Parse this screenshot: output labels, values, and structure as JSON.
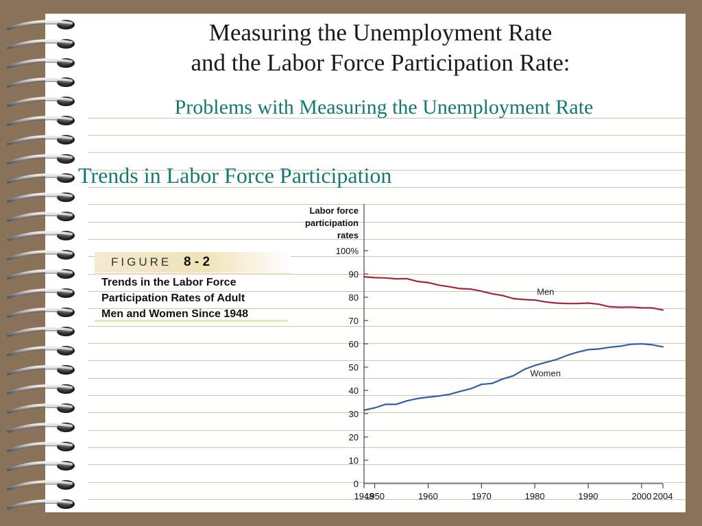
{
  "slide": {
    "title_line1": "Measuring the Unemployment Rate",
    "title_line2": "and the Labor Force Participation Rate:",
    "subtitle": "Problems with Measuring the Unemployment Rate",
    "section_heading": "Trends in Labor Force Participation"
  },
  "figure": {
    "label": "FIGURE",
    "number": "8 - 2",
    "caption_lines": [
      "Trends in the Labor Force",
      "Participation Rates of Adult",
      "Men and Women Since 1948"
    ]
  },
  "colors": {
    "men_line": "#a4243f",
    "women_line": "#2e5ea8",
    "accent_text": "#137a72"
  },
  "chart_data": {
    "type": "line",
    "ylabel_lines": [
      "Labor force",
      "participation",
      "rates"
    ],
    "ylim": [
      0,
      100
    ],
    "xlim": [
      1948,
      2004
    ],
    "y_ticks": [
      {
        "value": 0,
        "label": "0"
      },
      {
        "value": 10,
        "label": "10"
      },
      {
        "value": 20,
        "label": "20"
      },
      {
        "value": 30,
        "label": "30"
      },
      {
        "value": 40,
        "label": "40"
      },
      {
        "value": 50,
        "label": "50"
      },
      {
        "value": 60,
        "label": "60"
      },
      {
        "value": 70,
        "label": "70"
      },
      {
        "value": 80,
        "label": "80"
      },
      {
        "value": 90,
        "label": "90"
      },
      {
        "value": 100,
        "label": "100%"
      }
    ],
    "x_ticks": [
      {
        "value": 1948,
        "label": "1948"
      },
      {
        "value": 1950,
        "label": "1950"
      },
      {
        "value": 1960,
        "label": "1960"
      },
      {
        "value": 1970,
        "label": "1970"
      },
      {
        "value": 1980,
        "label": "1980"
      },
      {
        "value": 1990,
        "label": "1990"
      },
      {
        "value": 2000,
        "label": "2000"
      },
      {
        "value": 2004,
        "label": "2004"
      }
    ],
    "grid": false,
    "series": [
      {
        "name": "Men",
        "color": "#a4243f",
        "points": [
          [
            1948,
            88.8
          ],
          [
            1950,
            88.4
          ],
          [
            1952,
            88.3
          ],
          [
            1954,
            87.9
          ],
          [
            1956,
            88.0
          ],
          [
            1958,
            86.8
          ],
          [
            1960,
            86.3
          ],
          [
            1962,
            85.2
          ],
          [
            1964,
            84.5
          ],
          [
            1966,
            83.7
          ],
          [
            1968,
            83.5
          ],
          [
            1970,
            82.6
          ],
          [
            1972,
            81.5
          ],
          [
            1974,
            80.7
          ],
          [
            1976,
            79.4
          ],
          [
            1978,
            79.0
          ],
          [
            1980,
            78.8
          ],
          [
            1982,
            78.0
          ],
          [
            1984,
            77.5
          ],
          [
            1986,
            77.3
          ],
          [
            1988,
            77.3
          ],
          [
            1990,
            77.5
          ],
          [
            1992,
            77.0
          ],
          [
            1994,
            75.9
          ],
          [
            1996,
            75.7
          ],
          [
            1998,
            75.8
          ],
          [
            2000,
            75.5
          ],
          [
            2002,
            75.4
          ],
          [
            2004,
            74.5
          ]
        ]
      },
      {
        "name": "Women",
        "color": "#2e5ea8",
        "points": [
          [
            1948,
            31.5
          ],
          [
            1950,
            32.5
          ],
          [
            1952,
            34.0
          ],
          [
            1954,
            34.0
          ],
          [
            1956,
            35.5
          ],
          [
            1958,
            36.5
          ],
          [
            1960,
            37.1
          ],
          [
            1962,
            37.6
          ],
          [
            1964,
            38.3
          ],
          [
            1966,
            39.6
          ],
          [
            1968,
            40.7
          ],
          [
            1970,
            42.6
          ],
          [
            1972,
            43.0
          ],
          [
            1974,
            44.9
          ],
          [
            1976,
            46.3
          ],
          [
            1978,
            49.0
          ],
          [
            1980,
            50.7
          ],
          [
            1982,
            52.0
          ],
          [
            1984,
            53.2
          ],
          [
            1986,
            55.0
          ],
          [
            1988,
            56.4
          ],
          [
            1990,
            57.5
          ],
          [
            1992,
            57.8
          ],
          [
            1994,
            58.5
          ],
          [
            1996,
            59.0
          ],
          [
            1998,
            59.8
          ],
          [
            2000,
            60.0
          ],
          [
            2002,
            59.6
          ],
          [
            2004,
            58.7
          ]
        ]
      }
    ],
    "annotations": [
      {
        "text": "Men",
        "x": 1982,
        "y": 81
      },
      {
        "text": "Women",
        "x": 1982,
        "y": 46
      }
    ]
  }
}
